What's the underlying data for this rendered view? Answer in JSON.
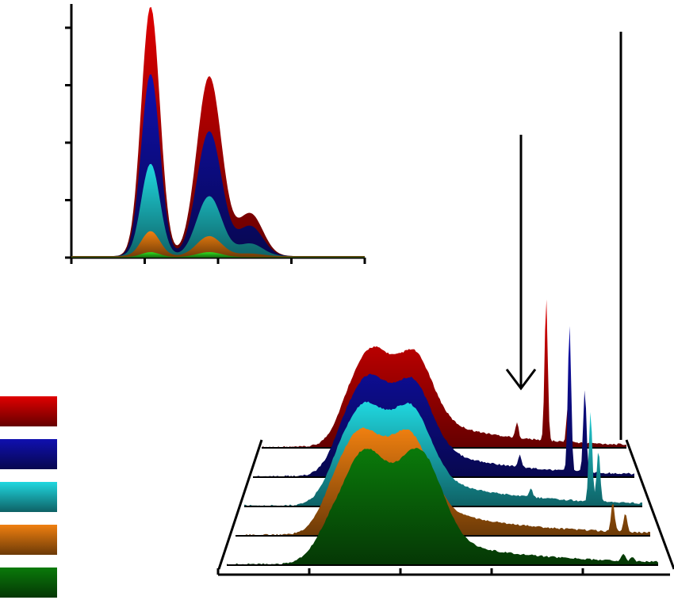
{
  "chart_data": [
    {
      "type": "area",
      "panel": "inset",
      "title": "",
      "xlabel": "",
      "ylabel": "",
      "grid": false,
      "x_ticks": 5,
      "y_ticks": 5,
      "series": [
        {
          "color": "#e00000",
          "peaks": [
            [
              0.27,
              1.0
            ],
            [
              0.47,
              0.72
            ],
            [
              0.61,
              0.17
            ]
          ]
        },
        {
          "color": "#1010b0",
          "peaks": [
            [
              0.27,
              0.73
            ],
            [
              0.47,
              0.5
            ],
            [
              0.61,
              0.12
            ]
          ]
        },
        {
          "color": "#20d8e0",
          "peaks": [
            [
              0.27,
              0.37
            ],
            [
              0.47,
              0.24
            ],
            [
              0.61,
              0.05
            ]
          ]
        },
        {
          "color": "#f08010",
          "peaks": [
            [
              0.27,
              0.1
            ],
            [
              0.47,
              0.08
            ],
            [
              0.61,
              0.01
            ]
          ]
        },
        {
          "color": "#30e020",
          "peaks": [
            [
              0.27,
              0.02
            ],
            [
              0.47,
              0.02
            ],
            [
              0.61,
              0.0
            ]
          ]
        }
      ]
    },
    {
      "type": "area",
      "panel": "main-waterfall",
      "title": "",
      "xlabel": "",
      "ylabel": "",
      "grid": false,
      "x_ticks": 5,
      "legend_position": "left",
      "series": [
        {
          "color": "#e00000",
          "broad": [
            [
              0.3,
              0.42
            ],
            [
              0.42,
              0.4
            ]
          ],
          "sharp": [
            [
              0.78,
              0.95
            ],
            [
              0.84,
              0.25
            ],
            [
              0.7,
              0.1
            ]
          ]
        },
        {
          "color": "#1010b0",
          "broad": [
            [
              0.3,
              0.43
            ],
            [
              0.42,
              0.41
            ]
          ],
          "sharp": [
            [
              0.83,
              0.98
            ],
            [
              0.87,
              0.55
            ],
            [
              0.7,
              0.08
            ]
          ]
        },
        {
          "color": "#20d8e0",
          "broad": [
            [
              0.3,
              0.44
            ],
            [
              0.42,
              0.43
            ]
          ],
          "sharp": [
            [
              0.87,
              0.6
            ],
            [
              0.89,
              0.35
            ],
            [
              0.72,
              0.06
            ]
          ]
        },
        {
          "color": "#f08010",
          "broad": [
            [
              0.3,
              0.46
            ],
            [
              0.42,
              0.45
            ]
          ],
          "sharp": [
            [
              0.91,
              0.2
            ],
            [
              0.94,
              0.12
            ]
          ]
        },
        {
          "color": "#0a7a0a",
          "broad": [
            [
              0.32,
              0.53
            ],
            [
              0.45,
              0.55
            ]
          ],
          "sharp": [
            [
              0.92,
              0.05
            ],
            [
              0.94,
              0.03
            ]
          ]
        }
      ],
      "annotations": [
        {
          "kind": "arrow-down",
          "at": 0.7
        },
        {
          "kind": "vertical-line",
          "at": 0.99
        }
      ]
    }
  ],
  "legend": [
    {
      "color": "#e00000"
    },
    {
      "color": "#1010b0"
    },
    {
      "color": "#20d8e0"
    },
    {
      "color": "#f08010"
    },
    {
      "color": "#0a7a0a"
    }
  ]
}
